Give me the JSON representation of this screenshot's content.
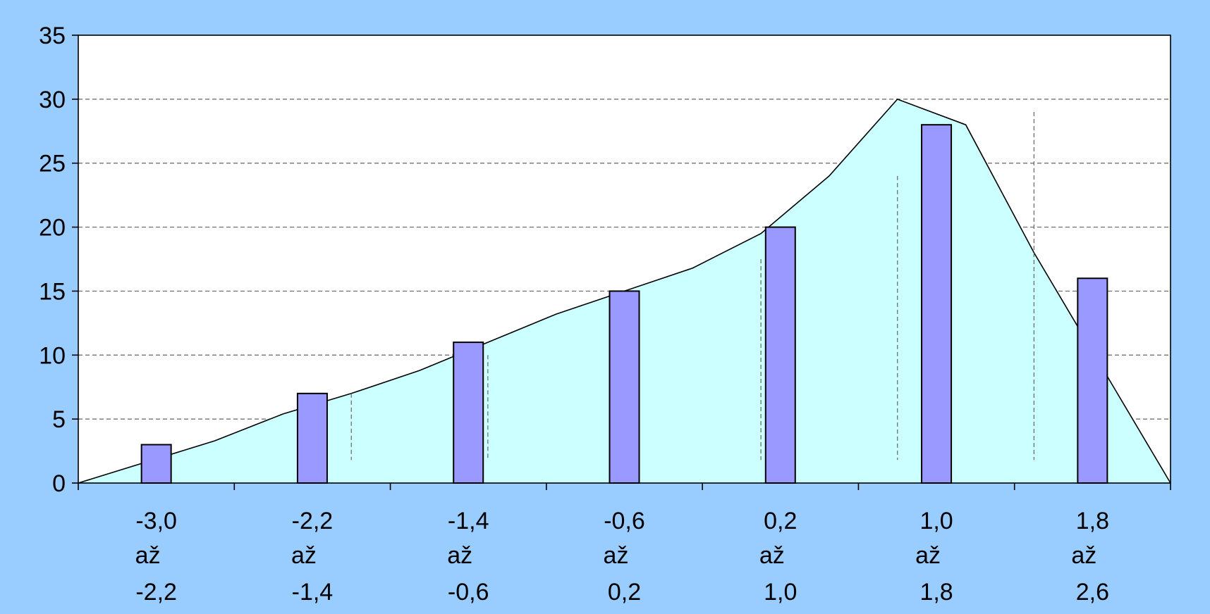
{
  "chart_data": {
    "type": "bar",
    "title": "",
    "xlabel": "",
    "ylabel": "",
    "ylim": [
      0,
      35
    ],
    "yticks": [
      0,
      5,
      10,
      15,
      20,
      25,
      30,
      35
    ],
    "grid": "horizontal dashed",
    "categories": [
      {
        "from": "-3,0",
        "sep": "až",
        "to": "-2,2"
      },
      {
        "from": "-2,2",
        "sep": "až",
        "to": "-1,4"
      },
      {
        "from": "-1,4",
        "sep": "až",
        "to": "-0,6"
      },
      {
        "from": "-0,6",
        "sep": "až",
        "to": "0,2"
      },
      {
        "from": "0,2",
        "sep": "až",
        "to": "1,0"
      },
      {
        "from": "1,0",
        "sep": "až",
        "to": "1,8"
      },
      {
        "from": "1,8",
        "sep": "až",
        "to": "2,6"
      }
    ],
    "values": [
      3,
      7,
      11,
      15,
      20,
      28,
      16
    ],
    "area_curve": {
      "x": [
        -3.4,
        -2.6,
        -2.2,
        -1.8,
        -1.4,
        -1.0,
        -0.6,
        -0.2,
        0.2,
        0.6,
        1.0,
        1.4,
        1.8,
        2.2,
        2.6,
        3.0
      ],
      "y": [
        0,
        3.3,
        5.4,
        7,
        8.8,
        11,
        13.2,
        15,
        16.8,
        19.5,
        24,
        30,
        28,
        18,
        9,
        0
      ]
    },
    "dashed_verticals": {
      "x": [
        -1.8,
        -1.0,
        -0.2,
        0.6,
        1.4,
        2.2
      ],
      "y_top": [
        7,
        10,
        14.5,
        17.5,
        24,
        29
      ]
    },
    "colors": {
      "background": "#99ccff",
      "plot_area": "#ffffff",
      "area_fill": "#ccffff",
      "bar_fill": "#9999ff",
      "line": "#000000",
      "grid": "#666666"
    }
  }
}
